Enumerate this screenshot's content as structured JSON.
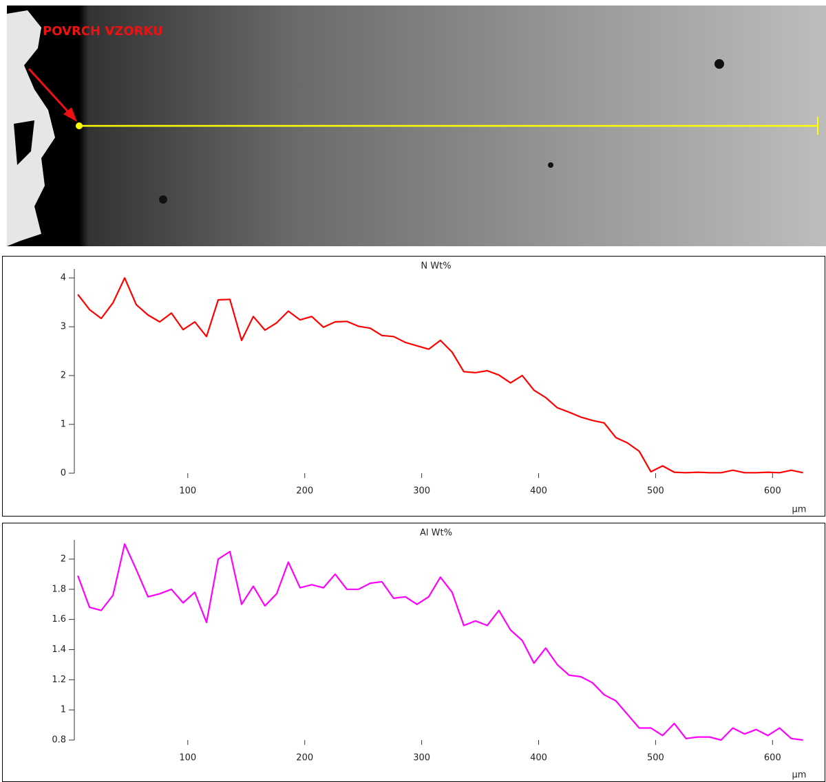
{
  "image": {
    "annotation": "POVRCH VZORKU"
  },
  "chart_data": [
    {
      "type": "line",
      "title": "N Wt%",
      "xlabel": "µm",
      "x": [
        6,
        16,
        26,
        36,
        46,
        56,
        66,
        76,
        86,
        96,
        106,
        116,
        126,
        136,
        146,
        156,
        166,
        176,
        186,
        196,
        206,
        216,
        226,
        236,
        246,
        256,
        266,
        276,
        286,
        296,
        306,
        316,
        326,
        336,
        346,
        356,
        366,
        376,
        386,
        396,
        406,
        416,
        426,
        436,
        446,
        456,
        466,
        476,
        486,
        496,
        506,
        516,
        526,
        536,
        546,
        556,
        566,
        576,
        586,
        596,
        606,
        616,
        626
      ],
      "values": [
        3.66,
        3.35,
        3.17,
        3.49,
        4.0,
        3.45,
        3.24,
        3.1,
        3.28,
        2.94,
        3.1,
        2.8,
        3.55,
        3.56,
        2.72,
        3.21,
        2.93,
        3.08,
        3.32,
        3.14,
        3.21,
        2.99,
        3.1,
        3.11,
        3.01,
        2.97,
        2.82,
        2.8,
        2.68,
        2.61,
        2.54,
        2.72,
        2.48,
        2.08,
        2.06,
        2.1,
        2.01,
        1.85,
        2.0,
        1.7,
        1.55,
        1.34,
        1.25,
        1.15,
        1.08,
        1.03,
        0.73,
        0.62,
        0.45,
        0.03,
        0.15,
        0.02,
        0.01,
        0.02,
        0.01,
        0.01,
        0.06,
        0.01,
        0.01,
        0.02,
        0.01,
        0.06,
        0.01
      ],
      "color": "#ff0000",
      "xlim": [
        3,
        631
      ],
      "xticks": [
        100,
        200,
        300,
        400,
        500,
        600
      ],
      "ylim": [
        0,
        4.1
      ],
      "yticks": [
        0,
        1,
        2,
        3,
        4
      ]
    },
    {
      "type": "line",
      "title": "Al Wt%",
      "xlabel": "µm",
      "x": [
        6,
        16,
        26,
        36,
        46,
        56,
        66,
        76,
        86,
        96,
        106,
        116,
        126,
        136,
        146,
        156,
        166,
        176,
        186,
        196,
        206,
        216,
        226,
        236,
        246,
        256,
        266,
        276,
        286,
        296,
        306,
        316,
        326,
        336,
        346,
        356,
        366,
        376,
        386,
        396,
        406,
        416,
        426,
        436,
        446,
        456,
        466,
        476,
        486,
        496,
        506,
        516,
        526,
        536,
        546,
        556,
        566,
        576,
        586,
        596,
        606,
        616,
        626
      ],
      "values": [
        1.89,
        1.68,
        1.66,
        1.76,
        2.1,
        1.93,
        1.75,
        1.77,
        1.8,
        1.71,
        1.78,
        1.58,
        2.0,
        2.05,
        1.7,
        1.82,
        1.69,
        1.77,
        1.98,
        1.81,
        1.83,
        1.81,
        1.9,
        1.8,
        1.8,
        1.84,
        1.85,
        1.74,
        1.75,
        1.7,
        1.75,
        1.88,
        1.78,
        1.56,
        1.59,
        1.56,
        1.66,
        1.53,
        1.46,
        1.31,
        1.41,
        1.3,
        1.23,
        1.22,
        1.18,
        1.1,
        1.06,
        0.97,
        0.88,
        0.88,
        0.83,
        0.91,
        0.81,
        0.82,
        0.82,
        0.8,
        0.88,
        0.84,
        0.87,
        0.83,
        0.88,
        0.81,
        0.8
      ],
      "color": "#ff00ff",
      "xlim": [
        3,
        631
      ],
      "xticks": [
        100,
        200,
        300,
        400,
        500,
        600
      ],
      "ylim": [
        0.8,
        2.1
      ],
      "yticks": [
        0.8,
        1,
        1.2,
        1.4,
        1.6,
        1.8,
        2
      ]
    }
  ]
}
